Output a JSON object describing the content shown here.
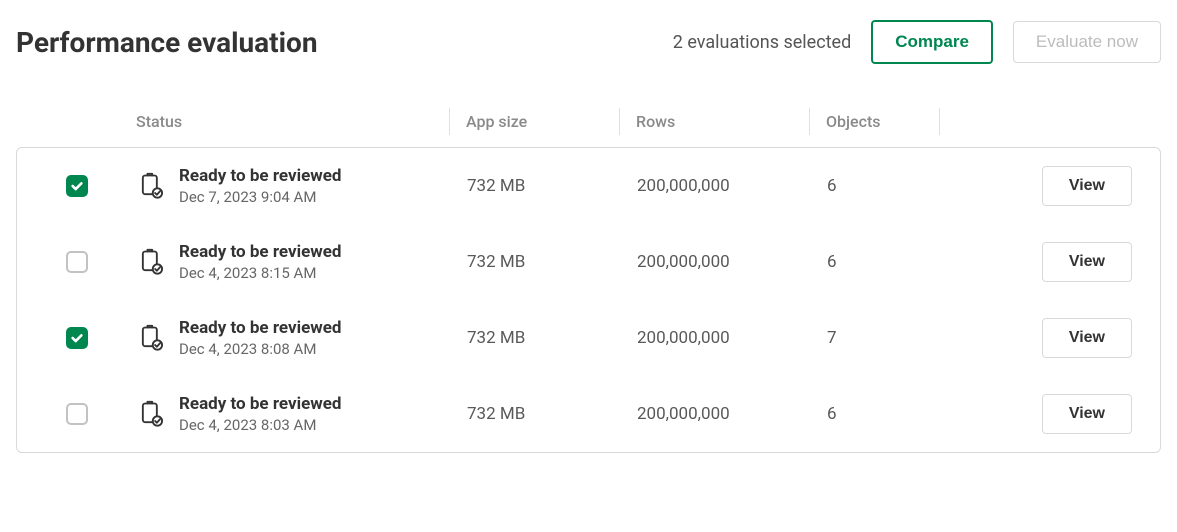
{
  "header": {
    "title": "Performance evaluation",
    "selection_text": "2 evaluations selected",
    "compare_label": "Compare",
    "evaluate_label": "Evaluate now"
  },
  "columns": {
    "status": "Status",
    "app_size": "App size",
    "rows": "Rows",
    "objects": "Objects"
  },
  "view_button_label": "View",
  "colors": {
    "accent": "#008750",
    "border": "#d9d9d9",
    "text_primary": "#333333",
    "text_muted": "#8a8a8a"
  },
  "evaluations": [
    {
      "checked": true,
      "status_label": "Ready to be reviewed",
      "date": "Dec 7, 2023 9:04 AM",
      "app_size": "732 MB",
      "rows": "200,000,000",
      "objects": "6"
    },
    {
      "checked": false,
      "status_label": "Ready to be reviewed",
      "date": "Dec 4, 2023 8:15 AM",
      "app_size": "732 MB",
      "rows": "200,000,000",
      "objects": "6"
    },
    {
      "checked": true,
      "status_label": "Ready to be reviewed",
      "date": "Dec 4, 2023 8:08 AM",
      "app_size": "732 MB",
      "rows": "200,000,000",
      "objects": "7"
    },
    {
      "checked": false,
      "status_label": "Ready to be reviewed",
      "date": "Dec 4, 2023 8:03 AM",
      "app_size": "732 MB",
      "rows": "200,000,000",
      "objects": "6"
    }
  ]
}
